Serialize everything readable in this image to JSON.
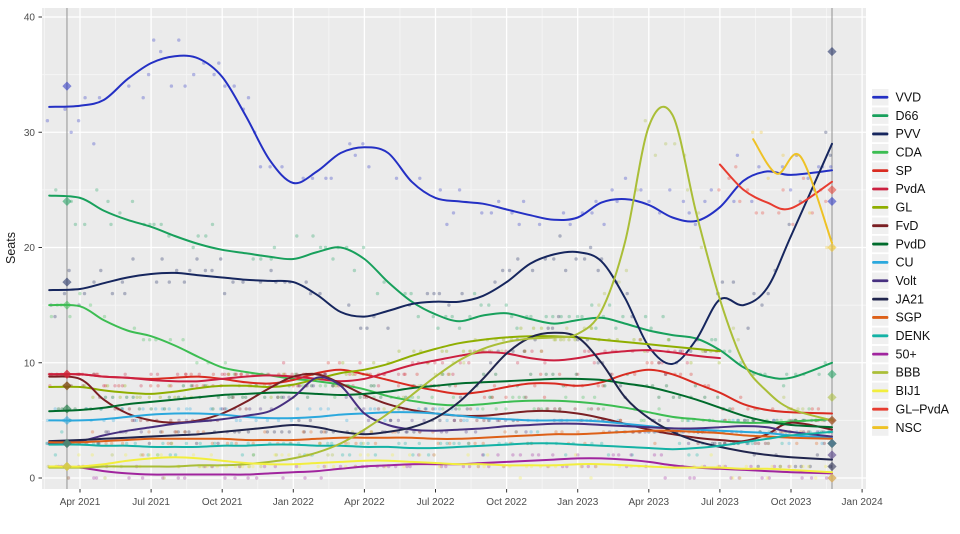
{
  "chart_data": {
    "type": "scatter",
    "title": "",
    "ylabel": "Seats",
    "xlabel": "",
    "ylim": [
      -1,
      40.8
    ],
    "grid": "on",
    "legend_position": "right",
    "x_tick_t": [
      0,
      3,
      6,
      9,
      12,
      15,
      18,
      21,
      24,
      27,
      30,
      33
    ],
    "x_tick_labels": [
      "Apr 2021",
      "Jul 2021",
      "Oct 2021",
      "Jan 2022",
      "Apr 2022",
      "Jul 2022",
      "Oct 2022",
      "Jan 2023",
      "Apr 2023",
      "Jul 2023",
      "Oct 2023",
      "Jan 2024"
    ],
    "y_ticks": [
      0,
      10,
      20,
      30,
      40
    ],
    "colors": {
      "panel_bg": "#ebebeb",
      "grid_major": "#ffffff",
      "grid_minor": "#f5f5f5",
      "election_line": "#9a9a9a",
      "tick_text": "#4d4d4d",
      "axis_title": "#1a1a1a",
      "legend_text": "#111111",
      "legend_key_bg": "#f0f0f0"
    },
    "series": [
      {
        "name": "VVD",
        "color": "#2430c4",
        "t0": -1.3,
        "end_at_election": true,
        "values": [
          32.2,
          32.3,
          32.8,
          34.6,
          36.0,
          36.6,
          36.4,
          34.8,
          31.4,
          27.6,
          25.6,
          26.6,
          28.2,
          28.7,
          28.2,
          25.7,
          24.3,
          24.0,
          23.8,
          23.3,
          22.8,
          22.4,
          22.6,
          23.9,
          24.2,
          23.7,
          22.6,
          22.3,
          23.5,
          25.8,
          26.6,
          26.3,
          26.7
        ]
      },
      {
        "name": "D66",
        "color": "#18a05c",
        "t0": -1.3,
        "end_at_election": true,
        "values": [
          24.5,
          24.3,
          23.2,
          22.4,
          21.8,
          21.0,
          20.3,
          19.8,
          19.5,
          19.2,
          19.0,
          19.6,
          20.0,
          19.0,
          17.0,
          15.3,
          14.2,
          13.6,
          14.1,
          14.3,
          13.8,
          13.4,
          13.7,
          13.9,
          13.4,
          12.8,
          12.4,
          12.1,
          11.1,
          9.6,
          8.8,
          8.7,
          10.0
        ]
      },
      {
        "name": "PVV",
        "color": "#16265e",
        "t0": -1.3,
        "end_at_election": true,
        "values": [
          16.3,
          16.4,
          16.9,
          17.4,
          17.7,
          17.8,
          17.6,
          17.4,
          17.2,
          17.1,
          17.0,
          15.9,
          14.4,
          14.0,
          14.5,
          15.1,
          15.3,
          15.3,
          15.8,
          17.0,
          18.6,
          19.4,
          19.6,
          18.8,
          15.6,
          11.4,
          9.9,
          12.0,
          15.5,
          15.0,
          16.5,
          21.0,
          29.0
        ]
      },
      {
        "name": "CDA",
        "color": "#3cbd52",
        "t0": -1.3,
        "end_at_election": true,
        "values": [
          15.0,
          14.9,
          13.7,
          12.8,
          12.3,
          11.5,
          10.5,
          9.6,
          9.2,
          8.9,
          8.6,
          8.4,
          8.1,
          7.7,
          7.1,
          6.7,
          6.4,
          6.3,
          6.4,
          6.6,
          6.7,
          6.7,
          6.6,
          6.4,
          6.1,
          5.7,
          5.3,
          5.1,
          4.9,
          4.8,
          4.8,
          4.9,
          5.1
        ]
      },
      {
        "name": "SP",
        "color": "#d92b21",
        "t0": -1.3,
        "end_at_election": true,
        "values": [
          9.0,
          9.0,
          8.8,
          8.7,
          8.6,
          8.7,
          8.8,
          8.6,
          8.3,
          8.2,
          8.5,
          9.1,
          9.4,
          9.0,
          8.5,
          8.0,
          7.6,
          7.3,
          7.5,
          7.9,
          8.2,
          8.2,
          8.0,
          8.3,
          9.0,
          9.4,
          9.0,
          8.2,
          7.4,
          6.4,
          5.9,
          5.7,
          5.6
        ]
      },
      {
        "name": "PvdA",
        "color": "#cc2040",
        "t0": -1.3,
        "end_at_election": false,
        "values": [
          9.0,
          9.0,
          8.8,
          8.7,
          8.5,
          8.4,
          8.4,
          8.6,
          8.8,
          8.9,
          8.8,
          8.6,
          8.4,
          8.6,
          9.2,
          9.8,
          10.2,
          10.6,
          10.9,
          10.8,
          10.4,
          10.2,
          10.4,
          10.8,
          11.0,
          11.1,
          10.9,
          10.6,
          10.4
        ]
      },
      {
        "name": "GL",
        "color": "#8fae00",
        "t0": -1.3,
        "end_at_election": false,
        "values": [
          7.9,
          7.9,
          7.6,
          7.4,
          7.3,
          7.5,
          7.8,
          8.0,
          8.0,
          7.9,
          8.1,
          8.6,
          9.1,
          9.4,
          9.9,
          10.6,
          11.2,
          11.7,
          12.0,
          12.2,
          12.3,
          12.3,
          12.2,
          12.0,
          11.8,
          11.6,
          11.4,
          11.2,
          11.0
        ]
      },
      {
        "name": "FvD",
        "color": "#7a1f23",
        "t0": -1.3,
        "end_at_election": true,
        "values": [
          8.8,
          8.6,
          6.8,
          5.6,
          5.0,
          4.8,
          5.0,
          5.6,
          6.6,
          7.8,
          8.8,
          9.0,
          8.2,
          7.2,
          6.4,
          5.9,
          5.6,
          5.4,
          5.4,
          5.6,
          5.8,
          5.8,
          5.6,
          5.2,
          4.7,
          4.2,
          3.8,
          3.5,
          3.3,
          3.2,
          3.8,
          4.8,
          4.2
        ]
      },
      {
        "name": "PvdD",
        "color": "#006b2c",
        "t0": -1.3,
        "end_at_election": true,
        "values": [
          5.8,
          5.9,
          6.1,
          6.4,
          6.6,
          6.8,
          7.0,
          7.2,
          7.3,
          7.4,
          7.4,
          7.3,
          7.2,
          7.3,
          7.5,
          7.8,
          8.0,
          8.2,
          8.3,
          8.4,
          8.5,
          8.6,
          8.6,
          8.5,
          8.2,
          7.9,
          7.4,
          6.8,
          6.1,
          5.4,
          4.9,
          4.6,
          4.4
        ]
      },
      {
        "name": "CU",
        "color": "#2ba8dd",
        "t0": -1.3,
        "end_at_election": true,
        "values": [
          5.0,
          5.0,
          5.1,
          5.3,
          5.5,
          5.6,
          5.6,
          5.5,
          5.3,
          5.2,
          5.2,
          5.3,
          5.5,
          5.6,
          5.7,
          5.7,
          5.6,
          5.4,
          5.2,
          5.1,
          5.0,
          5.0,
          5.0,
          4.9,
          4.7,
          4.5,
          4.3,
          4.2,
          4.1,
          4.0,
          3.9,
          3.7,
          3.5
        ]
      },
      {
        "name": "Volt",
        "color": "#473080",
        "t0": -1.3,
        "end_at_election": true,
        "values": [
          3.0,
          3.2,
          3.7,
          4.1,
          4.4,
          4.7,
          4.9,
          5.1,
          5.4,
          5.8,
          7.0,
          8.7,
          8.0,
          5.6,
          4.6,
          4.2,
          4.1,
          4.2,
          4.3,
          4.5,
          4.6,
          4.7,
          4.7,
          4.6,
          4.5,
          4.4,
          4.3,
          4.3,
          4.4,
          4.5,
          4.4,
          4.0,
          3.6
        ]
      },
      {
        "name": "JA21",
        "color": "#20254d",
        "t0": -1.3,
        "end_at_election": true,
        "values": [
          3.2,
          3.3,
          3.4,
          3.5,
          3.6,
          3.7,
          3.8,
          4.0,
          4.2,
          4.4,
          4.6,
          4.4,
          4.0,
          3.8,
          4.0,
          4.4,
          5.2,
          6.6,
          8.6,
          10.8,
          12.2,
          12.6,
          12.2,
          10.0,
          7.0,
          5.2,
          4.0,
          3.2,
          2.7,
          2.3,
          2.0,
          1.8,
          1.6
        ]
      },
      {
        "name": "SGP",
        "color": "#dd6018",
        "t0": -1.3,
        "end_at_election": true,
        "values": [
          3.1,
          3.1,
          3.2,
          3.3,
          3.4,
          3.4,
          3.4,
          3.4,
          3.3,
          3.3,
          3.3,
          3.4,
          3.5,
          3.5,
          3.5,
          3.5,
          3.4,
          3.4,
          3.5,
          3.6,
          3.7,
          3.8,
          3.8,
          3.9,
          4.0,
          4.1,
          4.1,
          4.0,
          3.9,
          3.7,
          3.6,
          3.5,
          3.4
        ]
      },
      {
        "name": "DENK",
        "color": "#14b2a5",
        "t0": -1.3,
        "end_at_election": true,
        "values": [
          2.9,
          2.9,
          2.8,
          2.8,
          2.7,
          2.7,
          2.7,
          2.8,
          2.8,
          2.9,
          2.9,
          2.8,
          2.8,
          2.7,
          2.7,
          2.6,
          2.6,
          2.7,
          2.8,
          2.9,
          3.0,
          3.0,
          2.9,
          2.8,
          2.7,
          2.6,
          2.5,
          2.6,
          2.8,
          3.1,
          3.4,
          3.7,
          4.0
        ]
      },
      {
        "name": "50+",
        "color": "#a0259e",
        "t0": -1.3,
        "end_at_election": true,
        "values": [
          1.0,
          0.9,
          0.6,
          0.4,
          0.3,
          0.3,
          0.3,
          0.3,
          0.3,
          0.4,
          0.5,
          0.6,
          0.8,
          1.0,
          1.1,
          1.2,
          1.2,
          1.2,
          1.3,
          1.4,
          1.5,
          1.6,
          1.7,
          1.7,
          1.6,
          1.4,
          1.1,
          0.9,
          0.8,
          0.7,
          0.6,
          0.5,
          0.4
        ]
      },
      {
        "name": "BBB",
        "color": "#aabe37",
        "t0": -1.3,
        "end_at_election": true,
        "values": [
          0.9,
          0.9,
          1.0,
          1.0,
          1.0,
          1.0,
          1.1,
          1.1,
          1.2,
          1.4,
          1.7,
          2.2,
          3.0,
          4.2,
          5.6,
          7.2,
          8.8,
          10.2,
          11.2,
          11.8,
          12.1,
          12.2,
          12.5,
          14.5,
          20.5,
          30.5,
          31.5,
          23.0,
          15.5,
          10.0,
          7.5,
          6.0,
          5.0
        ]
      },
      {
        "name": "BIJ1",
        "color": "#f2ee3e",
        "t0": -1.3,
        "end_at_election": true,
        "values": [
          1.0,
          1.0,
          1.2,
          1.5,
          1.7,
          1.8,
          1.7,
          1.5,
          1.3,
          1.2,
          1.2,
          1.3,
          1.4,
          1.5,
          1.5,
          1.4,
          1.3,
          1.2,
          1.2,
          1.1,
          1.1,
          1.1,
          1.2,
          1.2,
          1.1,
          1.0,
          0.9,
          0.9,
          0.9,
          0.8,
          0.8,
          0.7,
          0.5
        ]
      },
      {
        "name": "GL–PvdA",
        "color": "#e73c30",
        "t0": 27,
        "end_at_election": true,
        "values": [
          27.2,
          25.0,
          23.9,
          23.4,
          25.7
        ]
      },
      {
        "name": "NSC",
        "color": "#eec226",
        "t0": 28.4,
        "end_at_election": true,
        "values": [
          29.4,
          26.4,
          27.9,
          20.4
        ]
      }
    ],
    "elections": [
      {
        "t": -0.55,
        "results": [
          [
            "VVD",
            34
          ],
          [
            "D66",
            24
          ],
          [
            "PVV",
            17
          ],
          [
            "CDA",
            15
          ],
          [
            "SP",
            9
          ],
          [
            "PvdA",
            9
          ],
          [
            "GL",
            8
          ],
          [
            "FvD",
            8
          ],
          [
            "PvdD",
            6
          ],
          [
            "CU",
            5
          ],
          [
            "Volt",
            3
          ],
          [
            "JA21",
            3
          ],
          [
            "SGP",
            3
          ],
          [
            "DENK",
            3
          ],
          [
            "50+",
            1
          ],
          [
            "BBB",
            1
          ],
          [
            "BIJ1",
            1
          ]
        ]
      },
      {
        "t": 31.73,
        "results": [
          [
            "PVV",
            37
          ],
          [
            "GL–PvdA",
            25
          ],
          [
            "VVD",
            24
          ],
          [
            "NSC",
            20
          ],
          [
            "D66",
            9
          ],
          [
            "BBB",
            7
          ],
          [
            "CDA",
            5
          ],
          [
            "SP",
            5
          ],
          [
            "DENK",
            3
          ],
          [
            "PvdD",
            3
          ],
          [
            "SGP",
            3
          ],
          [
            "FvD",
            3
          ],
          [
            "CU",
            3
          ],
          [
            "Volt",
            2
          ],
          [
            "JA21",
            1
          ],
          [
            "50+",
            0
          ],
          [
            "BIJ1",
            0
          ]
        ]
      }
    ]
  }
}
